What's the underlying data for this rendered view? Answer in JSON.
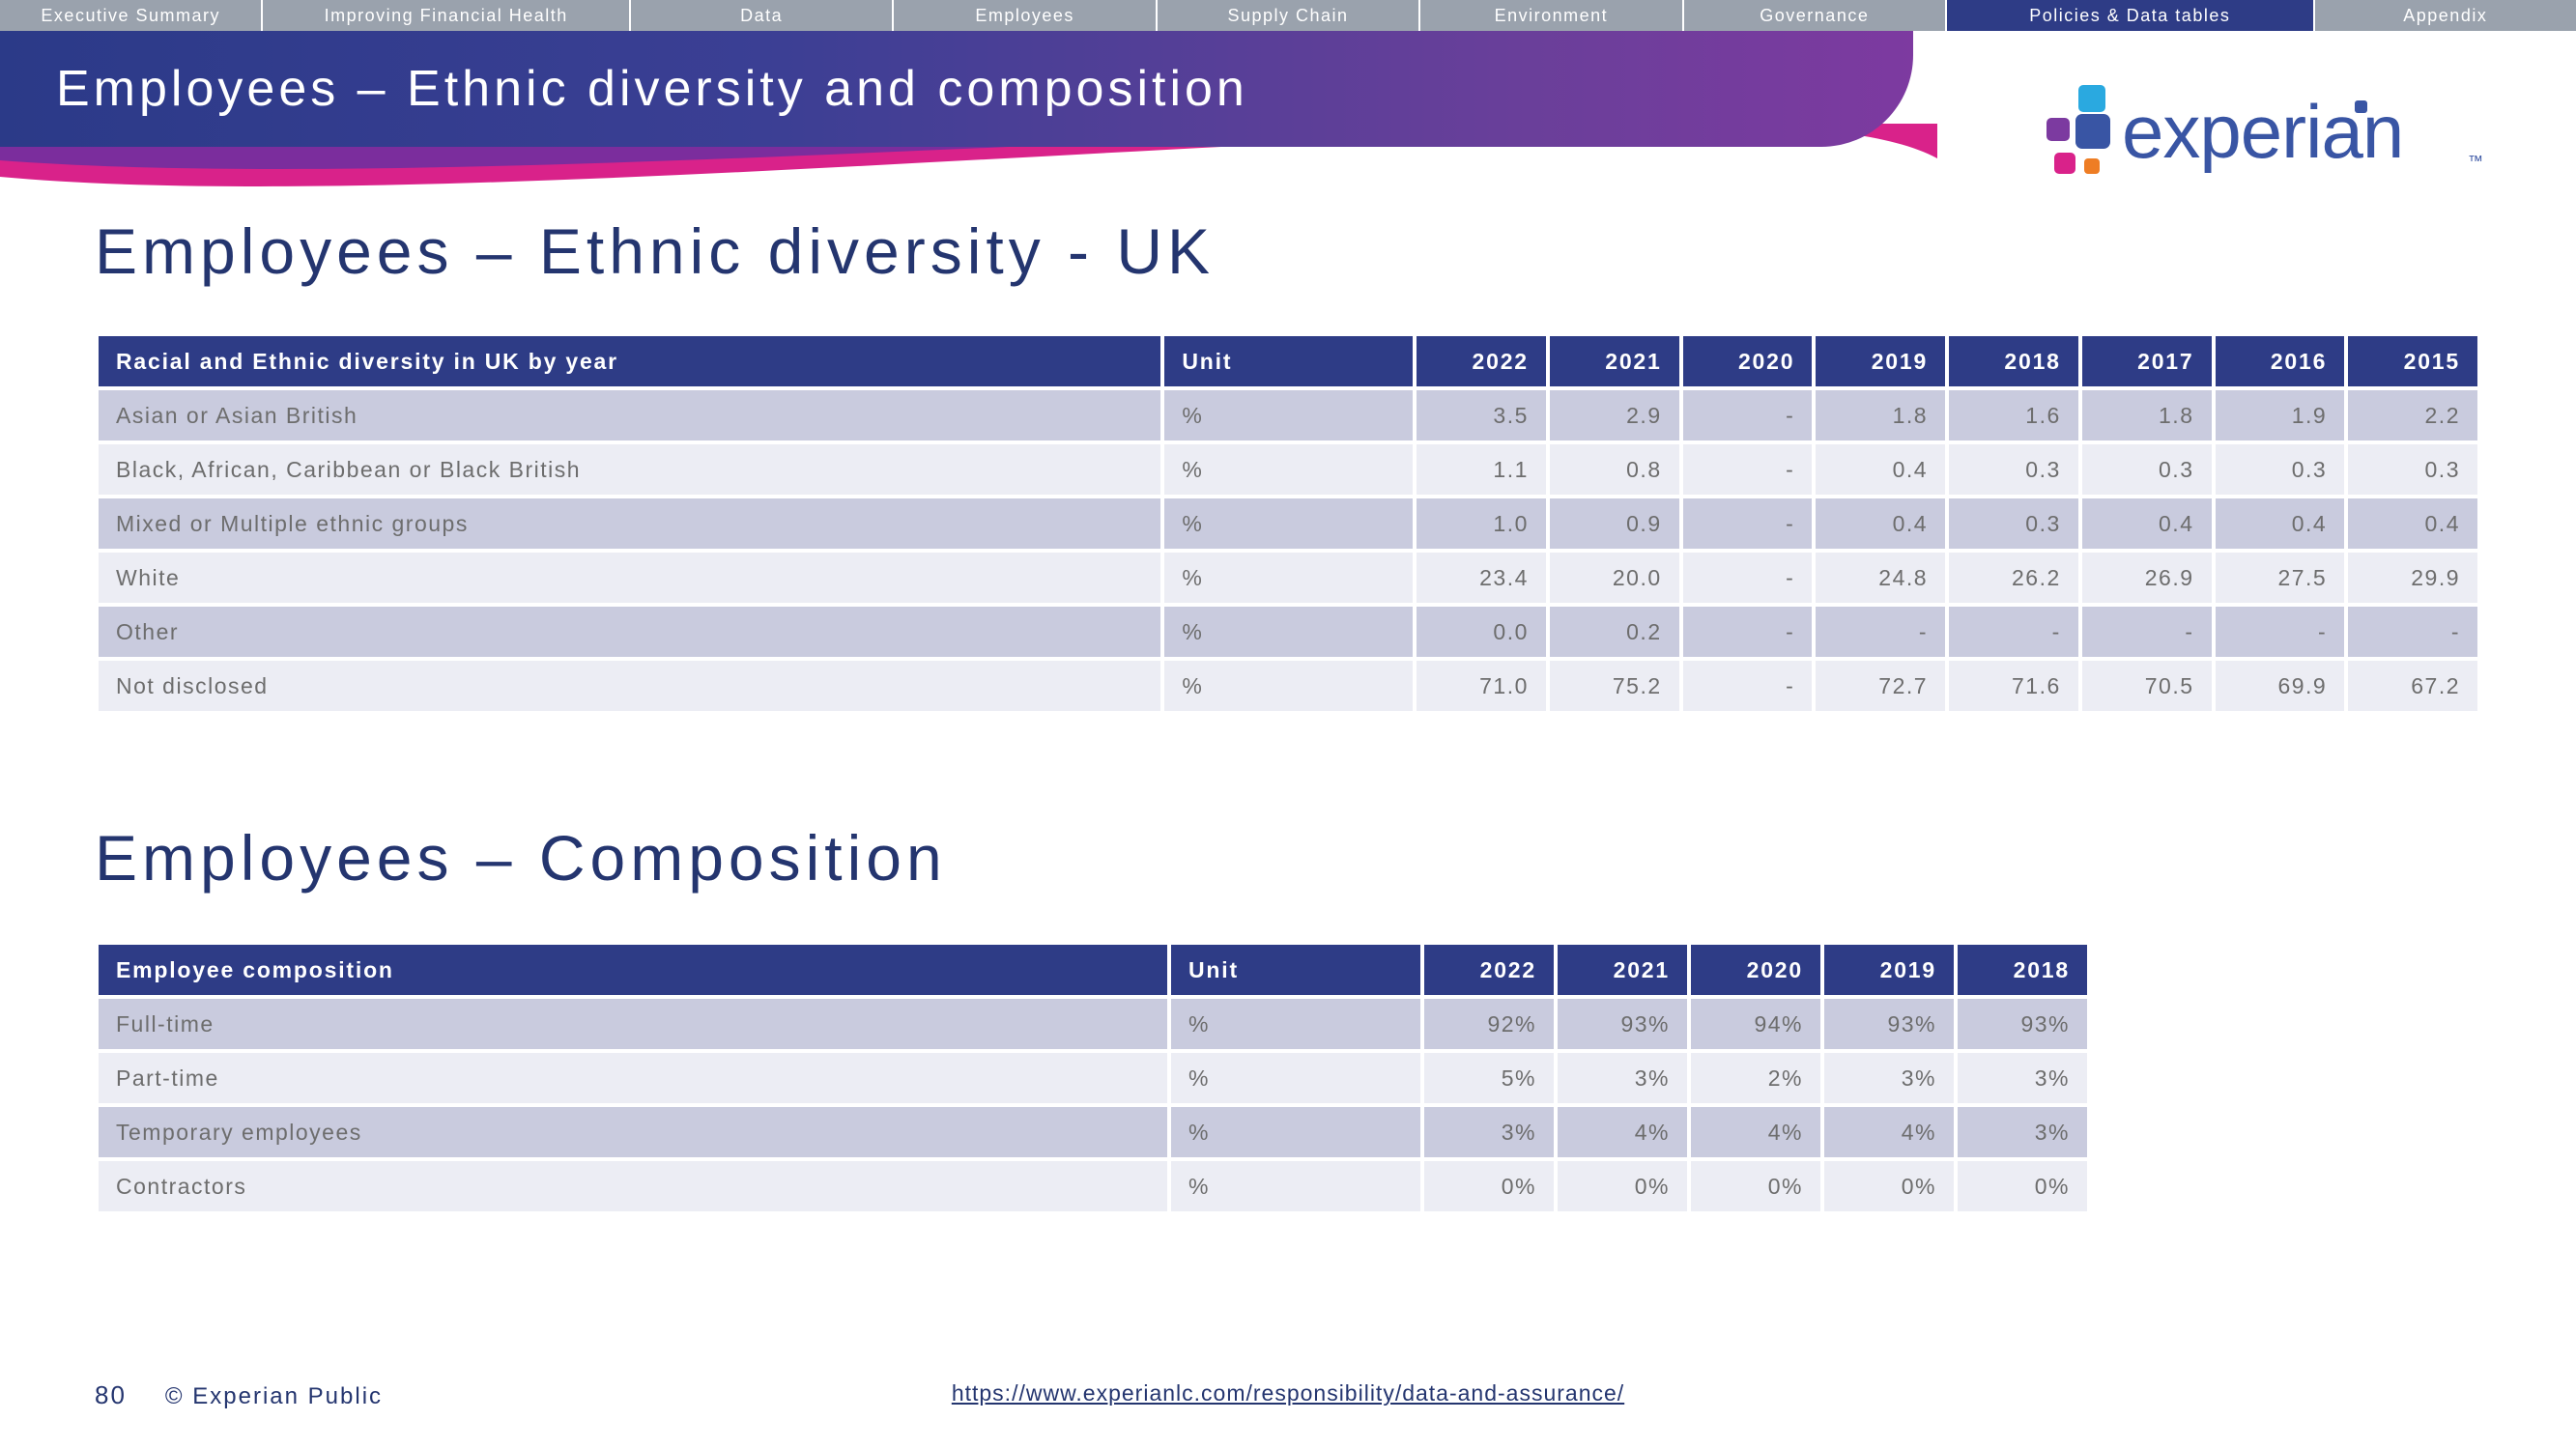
{
  "colors": {
    "nav_bg": "#9aa2ad",
    "nav_active": "#2e3c86",
    "banner_grad_from": "#2b3a88",
    "banner_grad_to": "#7d3aa0",
    "swoosh_pink": "#d9228a",
    "swoosh_purple": "#6a2fa0",
    "heading": "#24356f",
    "table_header_bg": "#2e3c86",
    "row_odd": "#c9cbde",
    "row_even": "#ecedf4",
    "text_body": "#6d6d6d",
    "logo_blue": "#3955a4",
    "logo_purple": "#7c3aa0",
    "logo_pink": "#d9228a",
    "logo_cyan": "#2aa9e0"
  },
  "nav": {
    "tabs": [
      "Executive Summary",
      "Improving Financial Health",
      "Data",
      "Employees",
      "Supply Chain",
      "Environment",
      "Governance",
      "Policies & Data tables",
      "Appendix"
    ],
    "active_index": 7
  },
  "banner_title": "Employees – Ethnic diversity and composition",
  "logo_text": "experian",
  "logo_tm": "™",
  "section1_title": "Employees – Ethnic diversity - UK",
  "section2_title": "Employees – Composition",
  "table1": {
    "header_label": "Racial and Ethnic diversity in UK by year",
    "header_unit": "Unit",
    "years": [
      "2022",
      "2021",
      "2020",
      "2019",
      "2018",
      "2017",
      "2016",
      "2015"
    ],
    "rows": [
      {
        "label": "Asian or Asian British",
        "unit": "%",
        "vals": [
          "3.5",
          "2.9",
          "-",
          "1.8",
          "1.6",
          "1.8",
          "1.9",
          "2.2"
        ]
      },
      {
        "label": "Black, African, Caribbean or Black British",
        "unit": "%",
        "vals": [
          "1.1",
          "0.8",
          "-",
          "0.4",
          "0.3",
          "0.3",
          "0.3",
          "0.3"
        ]
      },
      {
        "label": "Mixed or Multiple ethnic groups",
        "unit": "%",
        "vals": [
          "1.0",
          "0.9",
          "-",
          "0.4",
          "0.3",
          "0.4",
          "0.4",
          "0.4"
        ]
      },
      {
        "label": "White",
        "unit": "%",
        "vals": [
          "23.4",
          "20.0",
          "-",
          "24.8",
          "26.2",
          "26.9",
          "27.5",
          "29.9"
        ]
      },
      {
        "label": "Other",
        "unit": "%",
        "vals": [
          "0.0",
          "0.2",
          "-",
          "-",
          "-",
          "-",
          "-",
          "-"
        ]
      },
      {
        "label": "Not disclosed",
        "unit": "%",
        "vals": [
          "71.0",
          "75.2",
          "-",
          "72.7",
          "71.6",
          "70.5",
          "69.9",
          "67.2"
        ]
      }
    ]
  },
  "table2": {
    "header_label": "Employee composition",
    "header_unit": "Unit",
    "years": [
      "2022",
      "2021",
      "2020",
      "2019",
      "2018"
    ],
    "rows": [
      {
        "label": "Full-time",
        "unit": "%",
        "vals": [
          "92%",
          "93%",
          "94%",
          "93%",
          "93%"
        ]
      },
      {
        "label": "Part-time",
        "unit": "%",
        "vals": [
          "5%",
          "3%",
          "2%",
          "3%",
          "3%"
        ]
      },
      {
        "label": "Temporary employees",
        "unit": "%",
        "vals": [
          "3%",
          "4%",
          "4%",
          "4%",
          "3%"
        ]
      },
      {
        "label": "Contractors",
        "unit": "%",
        "vals": [
          "0%",
          "0%",
          "0%",
          "0%",
          "0%"
        ]
      }
    ]
  },
  "footer": {
    "page_no": "80",
    "copyright": "© Experian Public",
    "link_text": "https://www.experianlc.com/responsibility/data-and-assurance/"
  }
}
